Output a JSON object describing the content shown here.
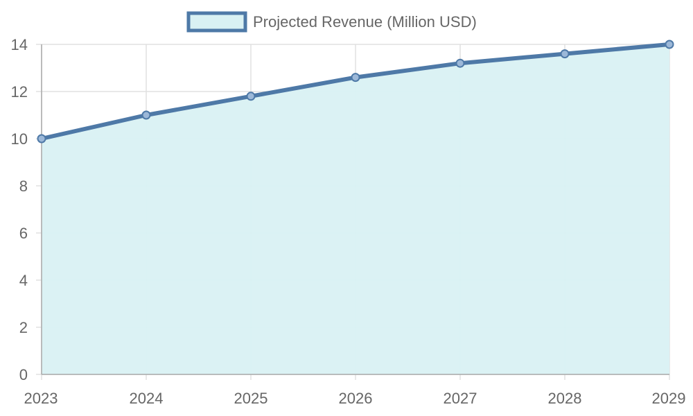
{
  "chart_data": {
    "type": "area",
    "title": "",
    "xlabel": "",
    "ylabel": "",
    "x": [
      "2023",
      "2024",
      "2025",
      "2026",
      "2027",
      "2028",
      "2029"
    ],
    "series": [
      {
        "name": "Projected Revenue (Million USD)",
        "values": [
          10,
          11,
          11.8,
          12.6,
          13.2,
          13.6,
          14
        ]
      }
    ],
    "ylim": [
      0,
      14
    ],
    "yticks": [
      0,
      2,
      4,
      6,
      8,
      10,
      12,
      14
    ],
    "grid": true,
    "legend_position": "top-center",
    "colors": {
      "line": "#4e79a7",
      "fill": "#d9f1f3",
      "grid": "#e0e0e0",
      "axis": "#aaaaaa",
      "text": "#666666"
    }
  }
}
